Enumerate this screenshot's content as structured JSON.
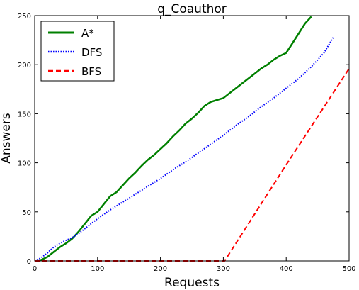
{
  "chart_data": {
    "type": "line",
    "title": "q_Coauthor",
    "xlabel": "Requests",
    "ylabel": "Answers",
    "xlim": [
      0,
      500
    ],
    "ylim": [
      0,
      250
    ],
    "xticks": [
      0,
      100,
      200,
      300,
      400,
      500
    ],
    "yticks": [
      0,
      50,
      100,
      150,
      200,
      250
    ],
    "grid": false,
    "legend_position": "top-left",
    "series": [
      {
        "name": "A*",
        "color": "#008000",
        "style": "solid",
        "x": [
          0,
          10,
          20,
          30,
          40,
          50,
          60,
          70,
          80,
          90,
          100,
          110,
          120,
          130,
          140,
          150,
          160,
          170,
          180,
          190,
          200,
          210,
          220,
          230,
          240,
          250,
          260,
          270,
          280,
          290,
          300,
          310,
          320,
          330,
          340,
          350,
          360,
          370,
          380,
          390,
          400,
          410,
          420,
          430,
          440
        ],
        "y": [
          0,
          1,
          4,
          9,
          14,
          18,
          23,
          30,
          38,
          46,
          50,
          58,
          66,
          70,
          77,
          84,
          90,
          97,
          103,
          108,
          114,
          120,
          127,
          133,
          140,
          145,
          151,
          158,
          162,
          164,
          166,
          171,
          176,
          181,
          186,
          191,
          196,
          200,
          205,
          209,
          212,
          222,
          232,
          242,
          249
        ]
      },
      {
        "name": "DFS",
        "color": "#0000ff",
        "style": "dotted",
        "x": [
          0,
          10,
          20,
          30,
          40,
          50,
          60,
          70,
          80,
          90,
          100,
          120,
          140,
          160,
          180,
          200,
          220,
          240,
          260,
          280,
          300,
          320,
          340,
          360,
          380,
          400,
          420,
          440,
          460,
          475
        ],
        "y": [
          0,
          3,
          8,
          14,
          18,
          21,
          24,
          28,
          33,
          38,
          43,
          52,
          60,
          68,
          76,
          84,
          93,
          101,
          110,
          119,
          128,
          138,
          147,
          157,
          166,
          176,
          186,
          198,
          212,
          228
        ]
      },
      {
        "name": "BFS",
        "color": "#ff0000",
        "style": "dashed",
        "x": [
          0,
          100,
          200,
          300,
          302,
          400,
          500
        ],
        "y": [
          0,
          0,
          0,
          0,
          0,
          98,
          196
        ]
      }
    ]
  }
}
